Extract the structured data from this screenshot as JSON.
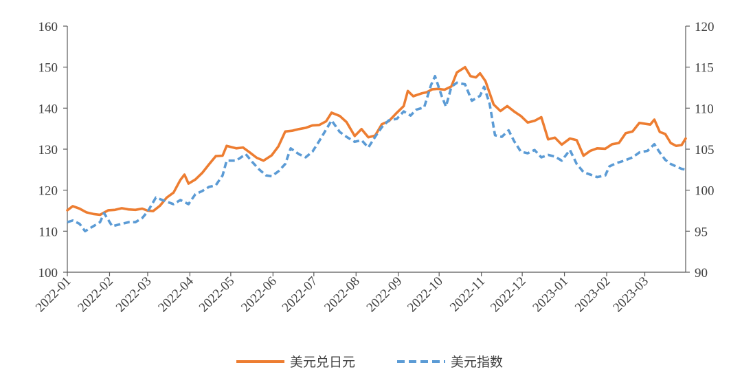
{
  "chart_data": {
    "type": "line",
    "title": "",
    "xlabel": "",
    "ylabel": "",
    "y2label": "",
    "grid": false,
    "legend_position": "bottom",
    "x_ticks": [
      "2022-01",
      "2022-02",
      "2022-03",
      "2022-04",
      "2022-05",
      "2022-06",
      "2022-07",
      "2022-08",
      "2022-09",
      "2022-10",
      "2022-11",
      "2022-12",
      "2023-01",
      "2023-02",
      "2023-03"
    ],
    "x_range": [
      "2022-01-01",
      "2023-03-31"
    ],
    "y_left": {
      "min": 100,
      "max": 160,
      "ticks": [
        "100",
        "110",
        "120",
        "130",
        "140",
        "150",
        "160"
      ]
    },
    "y_right": {
      "min": 90,
      "max": 120,
      "ticks": [
        "90",
        "95",
        "100",
        "105",
        "110",
        "115",
        "120"
      ]
    },
    "series": [
      {
        "name": "美元兑日元",
        "axis": "left",
        "color": "#ED7D31",
        "style": "solid",
        "points": [
          [
            "2022-01-01",
            115.1
          ],
          [
            "2022-01-05",
            116.1
          ],
          [
            "2022-01-10",
            115.5
          ],
          [
            "2022-01-15",
            114.6
          ],
          [
            "2022-01-20",
            114.2
          ],
          [
            "2022-01-25",
            114.0
          ],
          [
            "2022-01-31",
            115.1
          ],
          [
            "2022-02-05",
            115.2
          ],
          [
            "2022-02-10",
            115.6
          ],
          [
            "2022-02-15",
            115.3
          ],
          [
            "2022-02-20",
            115.2
          ],
          [
            "2022-02-25",
            115.5
          ],
          [
            "2022-03-01",
            115.0
          ],
          [
            "2022-03-05",
            114.9
          ],
          [
            "2022-03-10",
            116.2
          ],
          [
            "2022-03-15",
            118.2
          ],
          [
            "2022-03-20",
            119.4
          ],
          [
            "2022-03-25",
            122.5
          ],
          [
            "2022-03-28",
            123.8
          ],
          [
            "2022-03-31",
            121.6
          ],
          [
            "2022-04-05",
            122.6
          ],
          [
            "2022-04-10",
            124.2
          ],
          [
            "2022-04-15",
            126.3
          ],
          [
            "2022-04-20",
            128.3
          ],
          [
            "2022-04-25",
            128.4
          ],
          [
            "2022-04-28",
            130.8
          ],
          [
            "2022-05-05",
            130.2
          ],
          [
            "2022-05-10",
            130.4
          ],
          [
            "2022-05-15",
            129.2
          ],
          [
            "2022-05-20",
            127.9
          ],
          [
            "2022-05-25",
            127.2
          ],
          [
            "2022-05-31",
            128.5
          ],
          [
            "2022-06-05",
            130.7
          ],
          [
            "2022-06-10",
            134.3
          ],
          [
            "2022-06-15",
            134.5
          ],
          [
            "2022-06-20",
            134.9
          ],
          [
            "2022-06-25",
            135.2
          ],
          [
            "2022-06-30",
            135.8
          ],
          [
            "2022-07-05",
            135.9
          ],
          [
            "2022-07-10",
            136.8
          ],
          [
            "2022-07-14",
            138.9
          ],
          [
            "2022-07-20",
            138.1
          ],
          [
            "2022-07-25",
            136.6
          ],
          [
            "2022-07-31",
            133.2
          ],
          [
            "2022-08-05",
            134.9
          ],
          [
            "2022-08-10",
            132.9
          ],
          [
            "2022-08-15",
            133.3
          ],
          [
            "2022-08-20",
            136.1
          ],
          [
            "2022-08-25",
            136.8
          ],
          [
            "2022-08-31",
            138.9
          ],
          [
            "2022-09-05",
            140.5
          ],
          [
            "2022-09-08",
            144.2
          ],
          [
            "2022-09-12",
            142.9
          ],
          [
            "2022-09-18",
            143.6
          ],
          [
            "2022-09-22",
            143.9
          ],
          [
            "2022-09-26",
            144.6
          ],
          [
            "2022-09-30",
            144.7
          ],
          [
            "2022-10-05",
            144.5
          ],
          [
            "2022-10-10",
            145.3
          ],
          [
            "2022-10-14",
            148.7
          ],
          [
            "2022-10-20",
            150.0
          ],
          [
            "2022-10-24",
            147.8
          ],
          [
            "2022-10-28",
            147.5
          ],
          [
            "2022-10-31",
            148.5
          ],
          [
            "2022-11-04",
            146.6
          ],
          [
            "2022-11-10",
            140.9
          ],
          [
            "2022-11-15",
            139.3
          ],
          [
            "2022-11-20",
            140.5
          ],
          [
            "2022-11-25",
            139.2
          ],
          [
            "2022-11-30",
            138.1
          ],
          [
            "2022-12-05",
            136.5
          ],
          [
            "2022-12-10",
            136.9
          ],
          [
            "2022-12-15",
            137.8
          ],
          [
            "2022-12-20",
            132.4
          ],
          [
            "2022-12-25",
            132.8
          ],
          [
            "2022-12-30",
            131.1
          ],
          [
            "2023-01-05",
            132.6
          ],
          [
            "2023-01-10",
            132.2
          ],
          [
            "2023-01-15",
            128.4
          ],
          [
            "2023-01-20",
            129.6
          ],
          [
            "2023-01-25",
            130.2
          ],
          [
            "2023-01-31",
            130.1
          ],
          [
            "2023-02-05",
            131.2
          ],
          [
            "2023-02-10",
            131.5
          ],
          [
            "2023-02-15",
            133.9
          ],
          [
            "2023-02-20",
            134.3
          ],
          [
            "2023-02-25",
            136.4
          ],
          [
            "2023-03-05",
            136.0
          ],
          [
            "2023-03-08",
            137.2
          ],
          [
            "2023-03-12",
            134.2
          ],
          [
            "2023-03-16",
            133.7
          ],
          [
            "2023-03-20",
            131.5
          ],
          [
            "2023-03-24",
            130.8
          ],
          [
            "2023-03-28",
            131.0
          ],
          [
            "2023-03-31",
            132.6
          ]
        ]
      },
      {
        "name": "美元指数",
        "axis": "right",
        "color": "#5B9BD5",
        "style": "dashed",
        "points": [
          [
            "2022-01-01",
            96.1
          ],
          [
            "2022-01-05",
            96.3
          ],
          [
            "2022-01-10",
            95.9
          ],
          [
            "2022-01-14",
            95.0
          ],
          [
            "2022-01-20",
            95.6
          ],
          [
            "2022-01-25",
            96.1
          ],
          [
            "2022-01-28",
            97.2
          ],
          [
            "2022-02-03",
            95.6
          ],
          [
            "2022-02-10",
            95.9
          ],
          [
            "2022-02-15",
            96.1
          ],
          [
            "2022-02-20",
            96.1
          ],
          [
            "2022-02-25",
            96.6
          ],
          [
            "2022-03-01",
            97.4
          ],
          [
            "2022-03-07",
            99.1
          ],
          [
            "2022-03-15",
            98.6
          ],
          [
            "2022-03-20",
            98.3
          ],
          [
            "2022-03-25",
            98.8
          ],
          [
            "2022-03-31",
            98.3
          ],
          [
            "2022-04-05",
            99.5
          ],
          [
            "2022-04-10",
            99.9
          ],
          [
            "2022-04-15",
            100.4
          ],
          [
            "2022-04-20",
            100.6
          ],
          [
            "2022-04-25",
            101.8
          ],
          [
            "2022-04-28",
            103.6
          ],
          [
            "2022-05-05",
            103.6
          ],
          [
            "2022-05-12",
            104.4
          ],
          [
            "2022-05-17",
            103.4
          ],
          [
            "2022-05-22",
            102.5
          ],
          [
            "2022-05-27",
            101.8
          ],
          [
            "2022-05-31",
            101.7
          ],
          [
            "2022-06-05",
            102.3
          ],
          [
            "2022-06-10",
            103.2
          ],
          [
            "2022-06-14",
            105.1
          ],
          [
            "2022-06-20",
            104.4
          ],
          [
            "2022-06-25",
            104.0
          ],
          [
            "2022-06-30",
            104.7
          ],
          [
            "2022-07-05",
            106.0
          ],
          [
            "2022-07-14",
            108.5
          ],
          [
            "2022-07-20",
            107.1
          ],
          [
            "2022-07-25",
            106.5
          ],
          [
            "2022-07-31",
            105.9
          ],
          [
            "2022-08-05",
            106.1
          ],
          [
            "2022-08-10",
            105.2
          ],
          [
            "2022-08-15",
            106.5
          ],
          [
            "2022-08-20",
            107.7
          ],
          [
            "2022-08-25",
            108.5
          ],
          [
            "2022-08-31",
            108.7
          ],
          [
            "2022-09-05",
            109.6
          ],
          [
            "2022-09-10",
            109.1
          ],
          [
            "2022-09-14",
            109.8
          ],
          [
            "2022-09-20",
            110.1
          ],
          [
            "2022-09-25",
            112.8
          ],
          [
            "2022-09-28",
            113.9
          ],
          [
            "2022-10-03",
            111.4
          ],
          [
            "2022-10-06",
            110.2
          ],
          [
            "2022-10-10",
            112.6
          ],
          [
            "2022-10-14",
            113.1
          ],
          [
            "2022-10-20",
            112.9
          ],
          [
            "2022-10-25",
            110.9
          ],
          [
            "2022-10-31",
            111.5
          ],
          [
            "2022-11-03",
            112.6
          ],
          [
            "2022-11-07",
            110.6
          ],
          [
            "2022-11-11",
            106.7
          ],
          [
            "2022-11-16",
            106.5
          ],
          [
            "2022-11-21",
            107.3
          ],
          [
            "2022-11-25",
            106.0
          ],
          [
            "2022-11-30",
            104.7
          ],
          [
            "2022-12-05",
            104.5
          ],
          [
            "2022-12-10",
            104.9
          ],
          [
            "2022-12-15",
            104.0
          ],
          [
            "2022-12-20",
            104.3
          ],
          [
            "2022-12-25",
            104.1
          ],
          [
            "2022-12-30",
            103.6
          ],
          [
            "2023-01-05",
            104.9
          ],
          [
            "2023-01-10",
            103.2
          ],
          [
            "2023-01-15",
            102.2
          ],
          [
            "2023-01-20",
            101.9
          ],
          [
            "2023-01-25",
            101.6
          ],
          [
            "2023-01-31",
            101.8
          ],
          [
            "2023-02-03",
            102.9
          ],
          [
            "2023-02-08",
            103.3
          ],
          [
            "2023-02-14",
            103.6
          ],
          [
            "2023-02-20",
            104.0
          ],
          [
            "2023-02-25",
            104.6
          ],
          [
            "2023-03-03",
            104.8
          ],
          [
            "2023-03-08",
            105.6
          ],
          [
            "2023-03-12",
            104.6
          ],
          [
            "2023-03-16",
            103.7
          ],
          [
            "2023-03-20",
            103.2
          ],
          [
            "2023-03-24",
            102.9
          ],
          [
            "2023-03-28",
            102.6
          ],
          [
            "2023-03-31",
            102.5
          ]
        ]
      }
    ]
  }
}
